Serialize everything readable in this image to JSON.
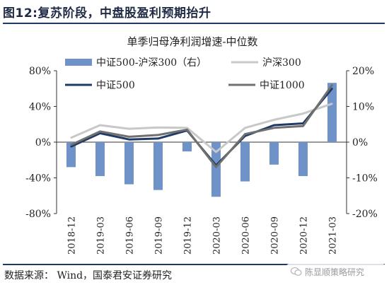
{
  "figure": {
    "title": "图12:复苏阶段，中盘股盈利预期抬升",
    "source": "数据来源：  Wind，国泰君安证券研究",
    "watermark": "陈显顺策略研究"
  },
  "chart_data": {
    "type": "bar+line",
    "title": "单季归母净利润增速-中位数",
    "categories": [
      "2018-12",
      "2019-03",
      "2019-06",
      "2019-09",
      "2019-12",
      "2020-03",
      "2020-06",
      "2020-09",
      "2020-12",
      "2021-03"
    ],
    "x_tick_labels": [
      "2018-12",
      "2019-03",
      "2019-06",
      "2019-09",
      "2019-12",
      "2020-03",
      "2020-06",
      "2020-09",
      "2020-12",
      "2021-03"
    ],
    "left_axis": {
      "ylim": [
        -0.8,
        0.8
      ],
      "ticks": [
        -0.8,
        -0.4,
        0,
        0.4,
        0.8
      ],
      "tick_labels": [
        "-80%",
        "-40%",
        "0%",
        "40%",
        "80%"
      ]
    },
    "right_axis": {
      "ylim": [
        -0.2,
        0.2
      ],
      "ticks": [
        -0.2,
        -0.1,
        0,
        0.1,
        0.2
      ],
      "tick_labels": [
        "-20%",
        "-10%",
        "0%",
        "10%",
        "20%"
      ]
    },
    "grid": false,
    "legend_position": "top",
    "series": [
      {
        "name": "中证500-沪深300（右）",
        "kind": "bar",
        "axis": "right",
        "color": "#6f93c8",
        "values": [
          -0.07,
          -0.095,
          -0.118,
          -0.134,
          -0.026,
          -0.153,
          -0.11,
          -0.063,
          -0.095,
          0.166
        ]
      },
      {
        "name": "沪深300",
        "kind": "line",
        "axis": "left",
        "color": "#c8c8c8",
        "values": [
          0.05,
          0.19,
          0.15,
          0.165,
          0.16,
          -0.11,
          0.16,
          0.25,
          0.32,
          0.43
        ]
      },
      {
        "name": "中证500",
        "kind": "line",
        "axis": "left",
        "color": "#1f3a66",
        "values": [
          -0.05,
          0.1,
          0.03,
          0.04,
          0.13,
          -0.26,
          0.07,
          0.19,
          0.21,
          0.6
        ]
      },
      {
        "name": "中证1000",
        "kind": "line",
        "axis": "left",
        "color": "#707070",
        "values": [
          -0.03,
          0.12,
          0.06,
          0.08,
          0.14,
          -0.28,
          0.09,
          0.16,
          0.18,
          0.64
        ]
      }
    ]
  }
}
